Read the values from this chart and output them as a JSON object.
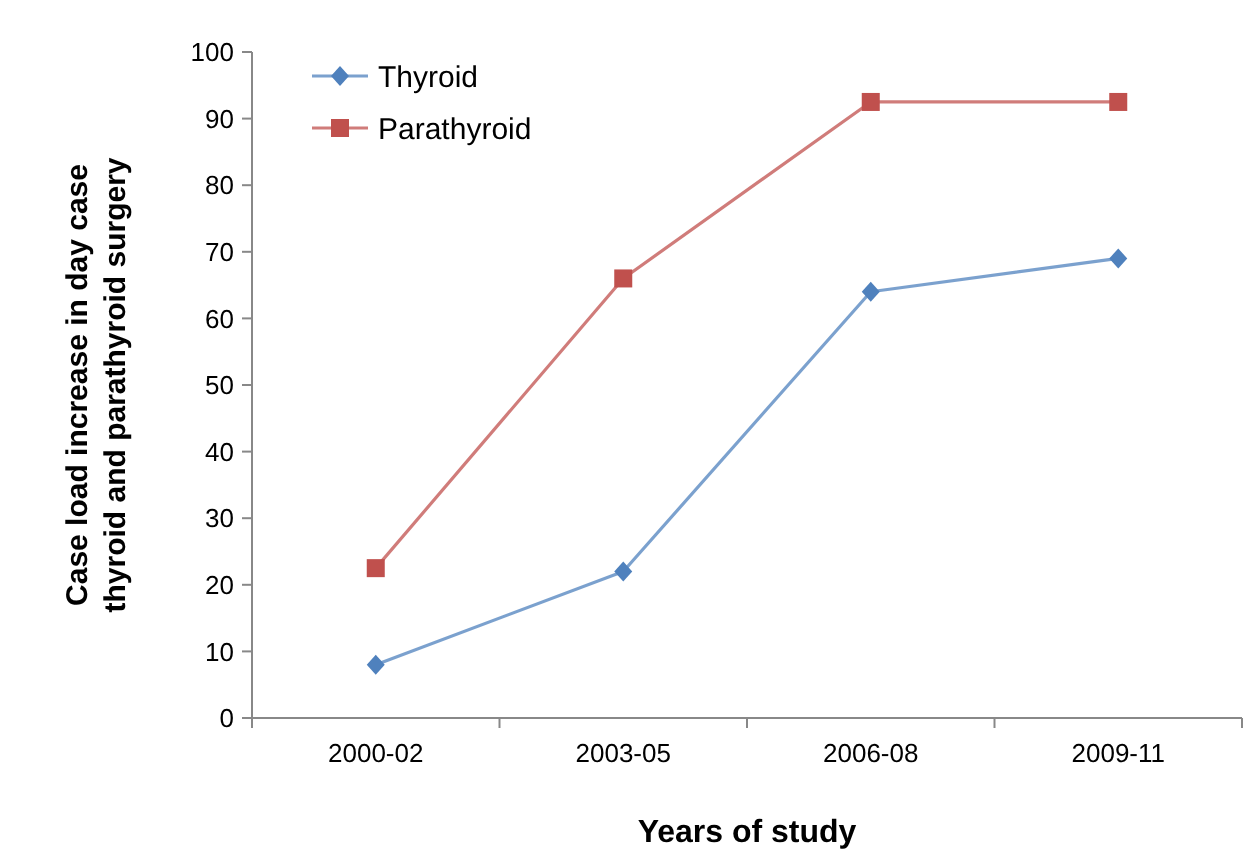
{
  "chart_data": {
    "type": "line",
    "xlabel": "Years of study",
    "ylabel": "Case load  increase in day case thyroid and parathyroid surgery",
    "categories": [
      "2000-02",
      "2003-05",
      "2006-08",
      "2009-11"
    ],
    "series": [
      {
        "name": "Thyroid",
        "color": "#4f81bd",
        "marker": "diamond",
        "values": [
          8,
          22,
          64,
          69
        ]
      },
      {
        "name": "Parathyroid",
        "color": "#c0504d",
        "marker": "square",
        "values": [
          22.5,
          66,
          92.5,
          92.5
        ]
      }
    ],
    "ylim": [
      0,
      100
    ],
    "yticks": [
      0,
      10,
      20,
      30,
      40,
      50,
      60,
      70,
      80,
      90,
      100
    ],
    "grid": false,
    "legend": "top left",
    "line_style": "solid"
  }
}
